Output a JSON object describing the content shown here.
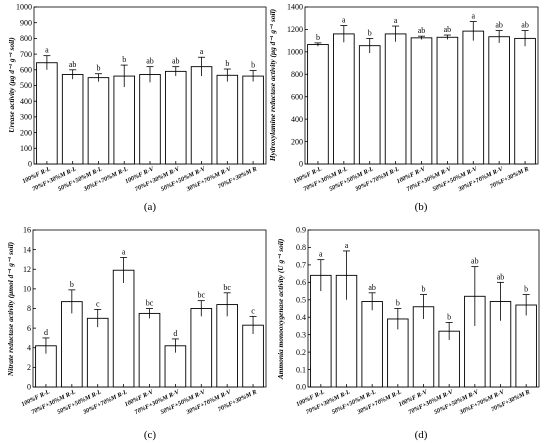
{
  "chart_data": [
    {
      "type": "bar",
      "panel_label": "(a)",
      "ylabel": "Urease activity (μg d⁻¹ g⁻¹ soil)",
      "ylim": [
        0,
        1000
      ],
      "yticks": [
        0,
        100,
        200,
        300,
        400,
        500,
        600,
        700,
        800,
        900,
        1000
      ],
      "categories": [
        "100%F R-L",
        "70%F+30%M R-L",
        "50%F+50%M R-L",
        "30%F+70%M R-L",
        "100%F R-V",
        "70%F+30%M R-V",
        "50%F+50%M R-V",
        "30%F+70%M R-V",
        "70%F+30%M R"
      ],
      "values": [
        645,
        570,
        550,
        560,
        570,
        590,
        620,
        565,
        560
      ],
      "errors": [
        45,
        30,
        25,
        70,
        50,
        30,
        60,
        40,
        35
      ],
      "letters": [
        "a",
        "ab",
        "b",
        "b",
        "ab",
        "ab",
        "a",
        "b",
        "b"
      ]
    },
    {
      "type": "bar",
      "panel_label": "(b)",
      "ylabel": "Hydroxylamine reductase activity (μg d⁻¹ g⁻¹ soil)",
      "ylim": [
        0,
        1400
      ],
      "yticks": [
        0,
        200,
        400,
        600,
        800,
        1000,
        1200,
        1400
      ],
      "categories": [
        "100%F R-L",
        "70%F+30%M R-L",
        "50%F+50%M R-L",
        "30%F+70%M R-L",
        "100%F R-V",
        "70%F+30%M R-V",
        "50%F+50%M R-V",
        "30%F+70%M R-V",
        "70%F+30%M R"
      ],
      "values": [
        1065,
        1160,
        1055,
        1160,
        1125,
        1130,
        1185,
        1135,
        1120
      ],
      "errors": [
        15,
        75,
        65,
        70,
        15,
        20,
        85,
        55,
        70
      ],
      "letters": [
        "b",
        "a",
        "b",
        "a",
        "ab",
        "ab",
        "a",
        "ab",
        "ab"
      ]
    },
    {
      "type": "bar",
      "panel_label": "(c)",
      "ylabel": "Nitrate reductase activity (μmol d⁻¹ g⁻¹ soil)",
      "ylim": [
        0,
        16
      ],
      "yticks": [
        0,
        2,
        4,
        6,
        8,
        10,
        12,
        14,
        16
      ],
      "categories": [
        "100%F R-L",
        "70%F+30%M R-L",
        "50%F+50%M R-L",
        "30%F+70%M R-L",
        "100%F R-V",
        "70%F+30%M R-V",
        "50%F+50%M R-V",
        "30%F+70%M R-V",
        "70%F+30%M R"
      ],
      "values": [
        4.2,
        8.7,
        7.0,
        11.9,
        7.5,
        4.2,
        8.0,
        8.4,
        6.3
      ],
      "errors": [
        0.8,
        1.2,
        0.9,
        1.3,
        0.5,
        0.7,
        0.8,
        1.2,
        0.9
      ],
      "letters": [
        "d",
        "b",
        "c",
        "a",
        "bc",
        "d",
        "bc",
        "bc",
        "c"
      ]
    },
    {
      "type": "bar",
      "panel_label": "(d)",
      "ylabel": "Ammonia monooxygenase activity (U g⁻¹ soil)",
      "ylim": [
        0,
        0.9
      ],
      "yticks": [
        "0.0",
        "0.1",
        "0.2",
        "0.3",
        "0.4",
        "0.5",
        "0.6",
        "0.7",
        "0.8",
        "0.9"
      ],
      "categories": [
        "100%F R-L",
        "70%F+30%M R-L",
        "50%F+50%M R-L",
        "30%F+70%M R-L",
        "100%F R-V",
        "70%F+30%M R-V",
        "50%F+50%M R-V",
        "30%F+70%M R-V",
        "70%F+30%M R"
      ],
      "values": [
        0.64,
        0.64,
        0.49,
        0.39,
        0.46,
        0.32,
        0.52,
        0.49,
        0.47
      ],
      "errors": [
        0.09,
        0.14,
        0.05,
        0.06,
        0.07,
        0.05,
        0.17,
        0.11,
        0.06
      ],
      "letters": [
        "a",
        "a",
        "ab",
        "b",
        "b",
        "b",
        "ab",
        "ab",
        "b"
      ]
    }
  ]
}
